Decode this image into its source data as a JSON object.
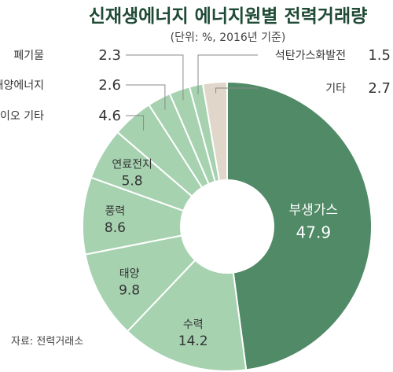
{
  "title": "신재생에너지 에너지원별 전력거래량",
  "subtitle": "(단위: %, 2016년 기준)",
  "source": "자료: 전력거래소",
  "colors": {
    "dominant": "#508a66",
    "light": "#a6d2b0",
    "other": "#e0d6ca",
    "stroke": "#ffffff"
  },
  "chart_data": {
    "type": "pie",
    "title": "신재생에너지 에너지원별 전력거래량",
    "subtitle": "(단위: %, 2016년 기준)",
    "unit": "%",
    "hole": "donut",
    "categories": [
      "부생가스",
      "수력",
      "태양",
      "풍력",
      "연료전지",
      "바이오 기타",
      "해양에너지",
      "폐기물",
      "석탄가스화발전",
      "기타"
    ],
    "values": [
      47.9,
      14.2,
      9.8,
      8.6,
      5.8,
      4.6,
      2.6,
      2.3,
      1.5,
      2.7
    ],
    "value_labels": [
      "47.9",
      "14.2",
      "9.8",
      "8.6",
      "5.8",
      "4.6",
      "2.6",
      "2.3",
      "1.5",
      "2.7"
    ]
  }
}
